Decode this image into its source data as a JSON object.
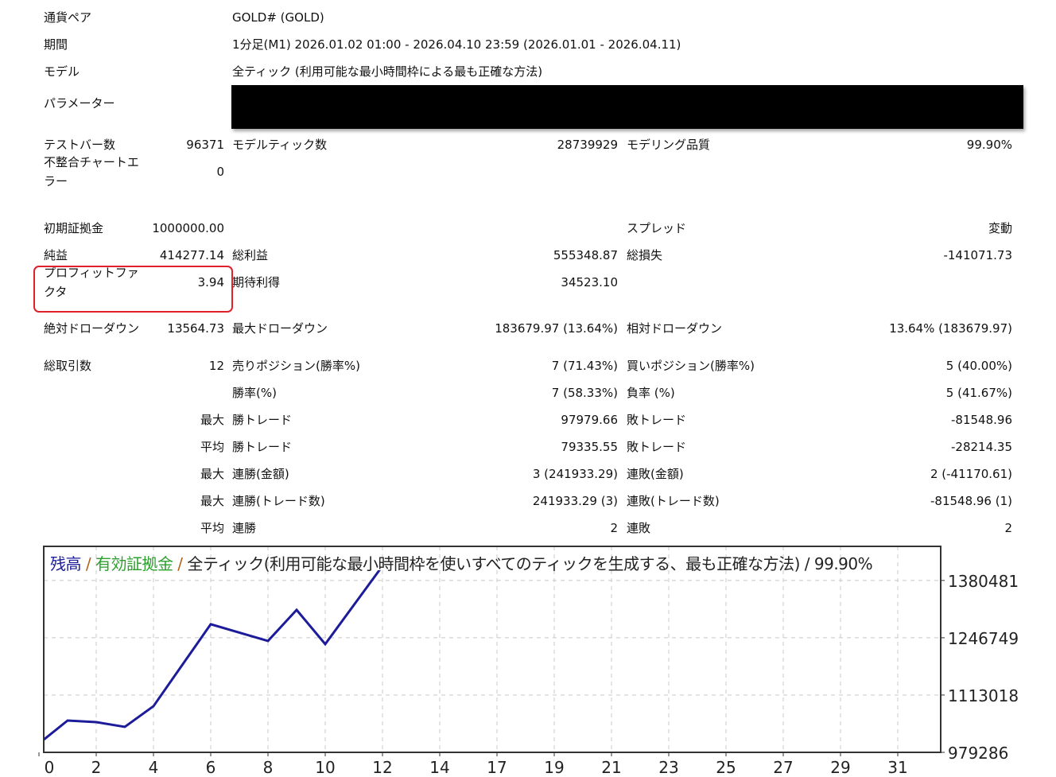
{
  "report": {
    "rows": [
      {
        "label": "通貨ペア",
        "wide": "GOLD# (GOLD)"
      },
      {
        "label": "期間",
        "wide": "1分足(M1) 2026.01.02 01:00 - 2026.04.10 23:59 (2026.01.01 - 2026.04.11)"
      },
      {
        "label": "モデル",
        "wide": "全ティック (利用可能な最小時間枠による最も正確な方法)"
      },
      {
        "label": "パラメーター",
        "redacted": true
      },
      {
        "label": "テストバー数",
        "v1": "96371",
        "l2": "モデルティック数",
        "v2": "28739929",
        "l3": "モデリング品質",
        "v3": "99.90%"
      },
      {
        "label": "不整合チャートエラー",
        "v1": "0"
      },
      {
        "label": "初期証拠金",
        "v1": "1000000.00",
        "l3": "スプレッド",
        "v3": "変動"
      },
      {
        "label": "純益",
        "v1": "414277.14",
        "l2": "総利益",
        "v2": "555348.87",
        "l3": "総損失",
        "v3": "-141071.73"
      },
      {
        "label": "プロフィットファクタ",
        "v1": "3.94",
        "l2": "期待利得",
        "v2": "34523.10",
        "highlighted": true
      },
      {
        "label": "絶対ドローダウン",
        "v1": "13564.73",
        "l2": "最大ドローダウン",
        "v2": "183679.97 (13.64%)",
        "l3": "相対ドローダウン",
        "v3": "13.64% (183679.97)"
      },
      {
        "label": "総取引数",
        "v1": "12",
        "l2": "売りポジション(勝率%)",
        "v2": "7 (71.43%)",
        "l3": "買いポジション(勝率%)",
        "v3": "5 (40.00%)"
      },
      {
        "l2": "勝率(%)",
        "v2": "7 (58.33%)",
        "l3": "負率 (%)",
        "v3": "5 (41.67%)"
      },
      {
        "v1": "最大",
        "l2": "勝トレード",
        "v2": "97979.66",
        "l3": "敗トレード",
        "v3": "-81548.96"
      },
      {
        "v1": "平均",
        "l2": "勝トレード",
        "v2": "79335.55",
        "l3": "敗トレード",
        "v3": "-28214.35"
      },
      {
        "v1": "最大",
        "l2": "連勝(金額)",
        "v2": "3 (241933.29)",
        "l3": "連敗(金額)",
        "v3": "2 (-41170.61)"
      },
      {
        "v1": "最大",
        "l2": "連勝(トレード数)",
        "v2": "241933.29 (3)",
        "l3": "連敗(トレード数)",
        "v3": "-81548.96 (1)"
      },
      {
        "v1": "平均",
        "l2": "連勝",
        "v2": "2",
        "l3": "連敗",
        "v3": "2"
      }
    ]
  },
  "chart_data": {
    "type": "line",
    "title_parts": [
      {
        "text": "残高",
        "color": "#1c1c9a"
      },
      {
        "text": " / ",
        "color": "#b0621a"
      },
      {
        "text": "有効証拠金",
        "color": "#2aa02a"
      },
      {
        "text": " / ",
        "color": "#b0621a"
      },
      {
        "text": "全ティック(利用可能な最小時間枠を使いすべてのティックを生成する、最も正確な方法) / 99.90%",
        "color": "#222222"
      }
    ],
    "x_tick_labels": [
      "0",
      "2",
      "4",
      "6",
      "8",
      "10",
      "12",
      "14",
      "17",
      "19",
      "21",
      "23",
      "25",
      "27",
      "29",
      "31"
    ],
    "y_tick_labels": [
      "1380481",
      "1246749",
      "1113018",
      "979286"
    ],
    "y_ticks": [
      1380481,
      1246749,
      1113018,
      979286
    ],
    "ylim": [
      979286,
      1460000
    ],
    "xlim": [
      0,
      31.5
    ],
    "grid": true,
    "series": [
      {
        "color": "#1c1c9a",
        "x": [
          0,
          1,
          2,
          3,
          4,
          5,
          6,
          7,
          8,
          9,
          10,
          11,
          12
        ],
        "values": [
          1000000,
          1053580,
          1049870,
          1038720,
          1087000,
          1182670,
          1278330,
          1258810,
          1239290,
          1311770,
          1231900,
          1323090,
          1414277
        ]
      }
    ]
  }
}
